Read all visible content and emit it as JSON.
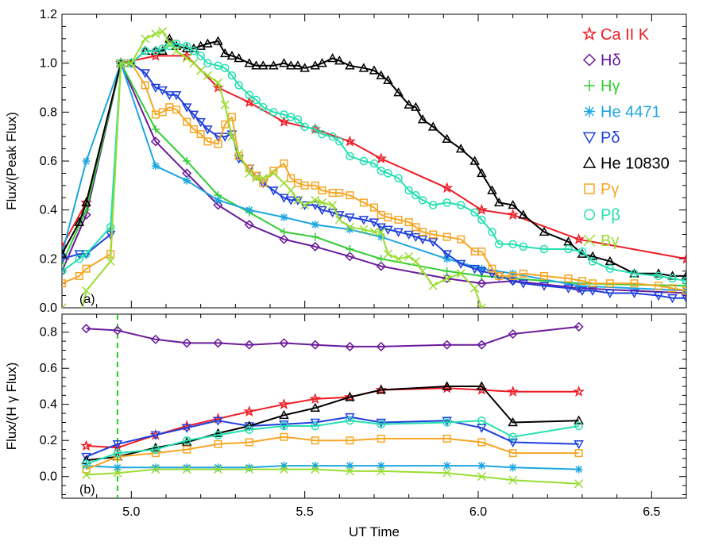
{
  "chart_data": [
    {
      "panel": "(a)",
      "type": "line",
      "xlabel": "",
      "ylabel": "Flux/(Peak Flux)",
      "xlim": [
        4.8,
        6.6
      ],
      "ylim": [
        0.0,
        1.2
      ],
      "xticks": [
        "5.0",
        "5.5",
        "6.0",
        "6.5"
      ],
      "yticks": [
        "0.0",
        "0.2",
        "0.4",
        "0.6",
        "0.8",
        "1.0",
        "1.2"
      ],
      "legend_position": "top-right",
      "series": [
        {
          "name": "Ca II K",
          "color": "#ee1c24",
          "marker": "star",
          "x": [
            4.8,
            4.87,
            4.97,
            5.07,
            5.16,
            5.25,
            5.34,
            5.44,
            5.53,
            5.63,
            5.72,
            5.91,
            6.01,
            6.1,
            6.29,
            6.6
          ],
          "y": [
            0.25,
            0.43,
            1.0,
            1.03,
            1.03,
            0.9,
            0.84,
            0.76,
            0.73,
            0.68,
            0.61,
            0.49,
            0.4,
            0.38,
            0.28,
            0.2
          ]
        },
        {
          "name": "Hδ",
          "color": "#6a1b9a",
          "marker": "diamond",
          "x": [
            4.8,
            4.87,
            4.97,
            5.07,
            5.16,
            5.25,
            5.34,
            5.44,
            5.53,
            5.63,
            5.72,
            5.91,
            6.01,
            6.1,
            6.29,
            6.6
          ],
          "y": [
            0.15,
            0.38,
            1.0,
            0.68,
            0.55,
            0.42,
            0.34,
            0.28,
            0.25,
            0.21,
            0.17,
            0.12,
            0.1,
            0.11,
            0.08,
            0.06
          ]
        },
        {
          "name": "Hγ",
          "color": "#33cc33",
          "marker": "plus",
          "x": [
            4.8,
            4.87,
            4.97,
            5.07,
            5.16,
            5.25,
            5.34,
            5.44,
            5.53,
            5.63,
            5.72,
            5.91,
            6.01,
            6.1,
            6.29,
            6.6
          ],
          "y": [
            0.18,
            0.4,
            1.0,
            0.73,
            0.6,
            0.46,
            0.39,
            0.31,
            0.29,
            0.24,
            0.2,
            0.15,
            0.13,
            0.12,
            0.1,
            0.09
          ]
        },
        {
          "name": "He 4471",
          "color": "#1ea6e0",
          "marker": "asterisk",
          "x": [
            4.8,
            4.87,
            4.97,
            5.07,
            5.16,
            5.25,
            5.34,
            5.44,
            5.53,
            5.63,
            5.72,
            5.91,
            6.01,
            6.1,
            6.29,
            6.6
          ],
          "y": [
            0.22,
            0.6,
            1.0,
            0.58,
            0.52,
            0.44,
            0.4,
            0.37,
            0.34,
            0.32,
            0.29,
            0.2,
            0.16,
            0.14,
            0.09,
            0.07
          ]
        },
        {
          "name": "Pδ",
          "color": "#1f3fdc",
          "marker": "triangle-down",
          "x": [
            4.8,
            4.85,
            4.87,
            4.94,
            4.97,
            5.0,
            5.04,
            5.07,
            5.09,
            5.11,
            5.13,
            5.16,
            5.18,
            5.2,
            5.22,
            5.25,
            5.27,
            5.29,
            5.31,
            5.34,
            5.36,
            5.38,
            5.41,
            5.44,
            5.46,
            5.48,
            5.5,
            5.53,
            5.55,
            5.58,
            5.6,
            5.63,
            5.67,
            5.7,
            5.72,
            5.74,
            5.77,
            5.8,
            5.82,
            5.84,
            5.87,
            5.91,
            5.95,
            5.99,
            6.01,
            6.04,
            6.06,
            6.1,
            6.13,
            6.19,
            6.26,
            6.3,
            6.33,
            6.38,
            6.45,
            6.52,
            6.56,
            6.6
          ],
          "y": [
            0.2,
            0.22,
            0.22,
            0.3,
            1.0,
            1.0,
            0.96,
            0.9,
            0.89,
            0.87,
            0.87,
            0.82,
            0.79,
            0.76,
            0.73,
            0.7,
            0.7,
            0.71,
            0.61,
            0.57,
            0.54,
            0.51,
            0.48,
            0.45,
            0.44,
            0.44,
            0.42,
            0.42,
            0.4,
            0.39,
            0.38,
            0.37,
            0.36,
            0.35,
            0.33,
            0.32,
            0.31,
            0.3,
            0.29,
            0.28,
            0.27,
            0.22,
            0.18,
            0.16,
            0.15,
            0.14,
            0.13,
            0.11,
            0.1,
            0.09,
            0.08,
            0.07,
            0.07,
            0.06,
            0.06,
            0.05,
            0.04,
            0.04
          ]
        },
        {
          "name": "He 10830",
          "color": "#000000",
          "marker": "triangle-up",
          "x": [
            4.8,
            4.85,
            4.87,
            4.97,
            5.0,
            5.04,
            5.07,
            5.09,
            5.11,
            5.13,
            5.16,
            5.18,
            5.2,
            5.22,
            5.25,
            5.27,
            5.29,
            5.31,
            5.34,
            5.36,
            5.38,
            5.41,
            5.44,
            5.46,
            5.48,
            5.5,
            5.53,
            5.55,
            5.58,
            5.6,
            5.63,
            5.67,
            5.7,
            5.72,
            5.74,
            5.77,
            5.8,
            5.82,
            5.84,
            5.87,
            5.91,
            5.95,
            5.99,
            6.01,
            6.04,
            6.06,
            6.1,
            6.13,
            6.19,
            6.26,
            6.3,
            6.33,
            6.38,
            6.45,
            6.52,
            6.56,
            6.6
          ],
          "y": [
            0.22,
            0.35,
            0.43,
            1.0,
            1.0,
            1.05,
            1.05,
            1.05,
            1.1,
            1.07,
            1.06,
            1.06,
            1.07,
            1.08,
            1.09,
            1.04,
            1.03,
            1.02,
            1.0,
            0.99,
            0.99,
            0.99,
            1.0,
            0.99,
            0.99,
            0.98,
            0.99,
            1.0,
            1.02,
            1.01,
            0.99,
            0.98,
            0.97,
            0.95,
            0.93,
            0.88,
            0.83,
            0.82,
            0.77,
            0.74,
            0.69,
            0.65,
            0.6,
            0.55,
            0.48,
            0.43,
            0.42,
            0.38,
            0.31,
            0.27,
            0.22,
            0.21,
            0.19,
            0.14,
            0.14,
            0.13,
            0.13
          ]
        },
        {
          "name": "Pγ",
          "color": "#f5a623",
          "marker": "square",
          "x": [
            4.8,
            4.85,
            4.87,
            4.94,
            4.97,
            5.0,
            5.04,
            5.07,
            5.09,
            5.11,
            5.13,
            5.16,
            5.18,
            5.2,
            5.22,
            5.25,
            5.27,
            5.29,
            5.31,
            5.34,
            5.36,
            5.38,
            5.41,
            5.44,
            5.46,
            5.48,
            5.5,
            5.53,
            5.55,
            5.58,
            5.6,
            5.63,
            5.67,
            5.7,
            5.72,
            5.74,
            5.77,
            5.8,
            5.82,
            5.84,
            5.87,
            5.91,
            5.95,
            5.99,
            6.01,
            6.04,
            6.06,
            6.1,
            6.13,
            6.19,
            6.26,
            6.3,
            6.33,
            6.38,
            6.45,
            6.52,
            6.56,
            6.6
          ],
          "y": [
            0.1,
            0.13,
            0.16,
            0.22,
            1.0,
            1.0,
            0.91,
            0.79,
            0.8,
            0.82,
            0.81,
            0.76,
            0.73,
            0.71,
            0.68,
            0.67,
            0.75,
            0.78,
            0.62,
            0.57,
            0.54,
            0.51,
            0.56,
            0.59,
            0.53,
            0.51,
            0.5,
            0.5,
            0.48,
            0.47,
            0.47,
            0.46,
            0.43,
            0.41,
            0.38,
            0.37,
            0.36,
            0.35,
            0.33,
            0.31,
            0.3,
            0.29,
            0.28,
            0.23,
            0.23,
            0.16,
            0.13,
            0.13,
            0.14,
            0.13,
            0.12,
            0.11,
            0.1,
            0.1,
            0.1,
            0.09,
            0.08,
            0.07
          ]
        },
        {
          "name": "Pβ",
          "color": "#22e0b0",
          "marker": "circle",
          "x": [
            4.8,
            4.85,
            4.87,
            4.94,
            4.97,
            5.0,
            5.04,
            5.07,
            5.09,
            5.11,
            5.13,
            5.16,
            5.18,
            5.2,
            5.22,
            5.25,
            5.27,
            5.29,
            5.31,
            5.34,
            5.36,
            5.38,
            5.41,
            5.44,
            5.46,
            5.48,
            5.5,
            5.53,
            5.55,
            5.58,
            5.6,
            5.63,
            5.67,
            5.7,
            5.72,
            5.74,
            5.77,
            5.8,
            5.82,
            5.84,
            5.87,
            5.91,
            5.95,
            5.99,
            6.01,
            6.04,
            6.06,
            6.1,
            6.13,
            6.19,
            6.26,
            6.3,
            6.33,
            6.38,
            6.45,
            6.52,
            6.56,
            6.6
          ],
          "y": [
            0.15,
            0.2,
            0.22,
            0.33,
            1.0,
            1.0,
            1.05,
            1.05,
            1.06,
            1.07,
            1.08,
            1.07,
            1.05,
            1.03,
            1.0,
            0.99,
            0.98,
            0.95,
            0.91,
            0.87,
            0.85,
            0.82,
            0.8,
            0.79,
            0.78,
            0.77,
            0.74,
            0.73,
            0.71,
            0.7,
            0.68,
            0.62,
            0.6,
            0.59,
            0.56,
            0.55,
            0.53,
            0.48,
            0.46,
            0.44,
            0.42,
            0.43,
            0.42,
            0.39,
            0.36,
            0.31,
            0.26,
            0.26,
            0.25,
            0.24,
            0.24,
            0.23,
            0.19,
            0.16,
            0.14,
            0.13,
            0.12,
            0.11
          ]
        },
        {
          "name": "Bγ",
          "color": "#99dd33",
          "marker": "x",
          "x": [
            4.8,
            4.85,
            4.87,
            4.94,
            4.97,
            5.0,
            5.04,
            5.07,
            5.09,
            5.11,
            5.13,
            5.16,
            5.18,
            5.2,
            5.22,
            5.25,
            5.27,
            5.29,
            5.31,
            5.34,
            5.36,
            5.38,
            5.41,
            5.44,
            5.46,
            5.48,
            5.5,
            5.53,
            5.55,
            5.58,
            5.6,
            5.63,
            5.67,
            5.7,
            5.72,
            5.74,
            5.77,
            5.8,
            5.82,
            5.84,
            5.87,
            5.91,
            5.95,
            5.99,
            6.01
          ],
          "y": [
            0.0,
            -0.05,
            0.07,
            0.19,
            1.0,
            1.0,
            1.1,
            1.12,
            1.13,
            1.08,
            1.05,
            1.02,
            1.0,
            0.97,
            0.95,
            0.92,
            0.83,
            0.7,
            0.63,
            0.55,
            0.53,
            0.53,
            0.55,
            0.51,
            0.48,
            0.44,
            0.42,
            0.44,
            0.43,
            0.42,
            0.36,
            0.33,
            0.32,
            0.31,
            0.31,
            0.22,
            0.2,
            0.21,
            0.19,
            0.15,
            0.09,
            0.12,
            0.14,
            0.08,
            0.0
          ]
        }
      ]
    },
    {
      "panel": "(b)",
      "type": "line",
      "xlabel": "UT Time",
      "ylabel": "Flux/(H γ Flux)",
      "xlim": [
        4.8,
        6.6
      ],
      "ylim": [
        -0.12,
        0.9
      ],
      "xticks": [
        "5.0",
        "5.5",
        "6.0",
        "6.5"
      ],
      "yticks": [
        "0.0",
        "0.2",
        "0.4",
        "0.6",
        "0.8"
      ],
      "vertical_line_x": 4.96,
      "series": [
        {
          "name": "Ca II K",
          "color": "#ee1c24",
          "marker": "star",
          "x": [
            4.87,
            4.96,
            5.07,
            5.16,
            5.25,
            5.34,
            5.44,
            5.53,
            5.63,
            5.72,
            5.91,
            6.01,
            6.1,
            6.29
          ],
          "y": [
            0.17,
            0.16,
            0.23,
            0.28,
            0.32,
            0.36,
            0.4,
            0.43,
            0.44,
            0.48,
            0.49,
            0.48,
            0.47,
            0.47
          ]
        },
        {
          "name": "Hδ",
          "color": "#6a1b9a",
          "marker": "diamond",
          "x": [
            4.87,
            4.96,
            5.07,
            5.16,
            5.25,
            5.34,
            5.44,
            5.53,
            5.63,
            5.72,
            5.91,
            6.01,
            6.1,
            6.29
          ],
          "y": [
            0.82,
            0.81,
            0.76,
            0.74,
            0.74,
            0.73,
            0.74,
            0.73,
            0.72,
            0.72,
            0.73,
            0.73,
            0.79,
            0.83
          ]
        },
        {
          "name": "He 4471",
          "color": "#1ea6e0",
          "marker": "asterisk",
          "x": [
            4.87,
            4.96,
            5.07,
            5.16,
            5.25,
            5.34,
            5.44,
            5.53,
            5.63,
            5.72,
            5.91,
            6.01,
            6.1,
            6.29
          ],
          "y": [
            0.06,
            0.05,
            0.05,
            0.05,
            0.05,
            0.05,
            0.06,
            0.06,
            0.06,
            0.06,
            0.06,
            0.06,
            0.05,
            0.04
          ]
        },
        {
          "name": "Pδ",
          "color": "#1f3fdc",
          "marker": "triangle-down",
          "x": [
            4.87,
            4.96,
            5.07,
            5.16,
            5.25,
            5.34,
            5.44,
            5.53,
            5.63,
            5.72,
            5.91,
            6.01,
            6.1,
            6.29
          ],
          "y": [
            0.11,
            0.18,
            0.23,
            0.27,
            0.31,
            0.28,
            0.29,
            0.3,
            0.33,
            0.3,
            0.31,
            0.27,
            0.19,
            0.18
          ]
        },
        {
          "name": "He 10830",
          "color": "#000000",
          "marker": "triangle-up",
          "x": [
            4.87,
            4.96,
            5.07,
            5.16,
            5.25,
            5.34,
            5.44,
            5.53,
            5.63,
            5.72,
            5.91,
            6.01,
            6.1,
            6.29
          ],
          "y": [
            0.09,
            0.11,
            0.16,
            0.19,
            0.24,
            0.28,
            0.34,
            0.38,
            0.44,
            0.48,
            0.5,
            0.5,
            0.3,
            0.31
          ]
        },
        {
          "name": "Pγ",
          "color": "#f5a623",
          "marker": "square",
          "x": [
            4.87,
            4.96,
            5.07,
            5.16,
            5.25,
            5.34,
            5.44,
            5.53,
            5.63,
            5.72,
            5.91,
            6.01,
            6.1,
            6.29
          ],
          "y": [
            0.04,
            0.11,
            0.13,
            0.15,
            0.18,
            0.19,
            0.22,
            0.2,
            0.2,
            0.21,
            0.21,
            0.19,
            0.13,
            0.13
          ]
        },
        {
          "name": "Pβ",
          "color": "#22e0b0",
          "marker": "circle",
          "x": [
            4.87,
            4.96,
            5.07,
            5.16,
            5.25,
            5.34,
            5.44,
            5.53,
            5.63,
            5.72,
            5.91,
            6.01,
            6.1,
            6.29
          ],
          "y": [
            0.07,
            0.13,
            0.15,
            0.2,
            0.23,
            0.26,
            0.28,
            0.28,
            0.31,
            0.29,
            0.3,
            0.31,
            0.22,
            0.28
          ]
        },
        {
          "name": "Bγ",
          "color": "#99dd33",
          "marker": "x",
          "x": [
            4.87,
            4.96,
            5.07,
            5.16,
            5.25,
            5.34,
            5.44,
            5.53,
            5.63,
            5.72,
            5.91,
            6.01,
            6.1,
            6.29
          ],
          "y": [
            0.01,
            0.02,
            0.04,
            0.04,
            0.04,
            0.04,
            0.04,
            0.04,
            0.03,
            0.03,
            0.02,
            0.0,
            -0.02,
            -0.04
          ]
        }
      ]
    }
  ]
}
